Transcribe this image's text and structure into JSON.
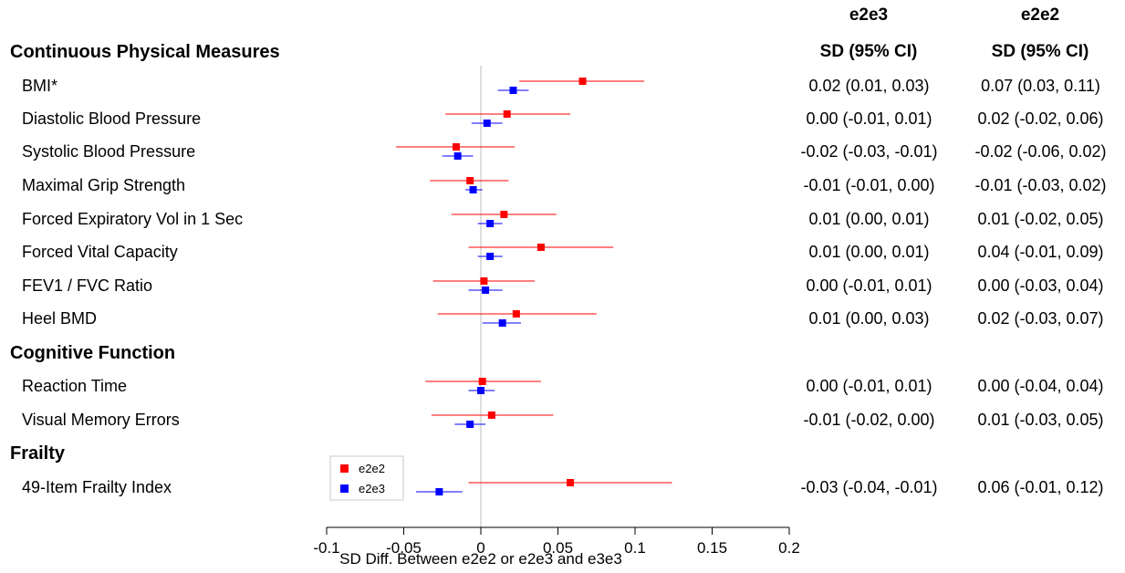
{
  "headers": {
    "e2e3": {
      "title": "e2e3",
      "sub": "SD (95% CI)"
    },
    "e2e2": {
      "title": "e2e2",
      "sub": "SD (95% CI)"
    }
  },
  "sections": [
    {
      "title": "Continuous Physical Measures"
    },
    {
      "title": "Cognitive Function"
    },
    {
      "title": "Frailty"
    }
  ],
  "rows": [
    {
      "label": "BMI*",
      "ci_e2e3": "0.02 (0.01, 0.03)",
      "ci_e2e2": "0.07 (0.03, 0.11)"
    },
    {
      "label": "Diastolic Blood Pressure",
      "ci_e2e3": "0.00 (-0.01, 0.01)",
      "ci_e2e2": "0.02 (-0.02, 0.06)"
    },
    {
      "label": "Systolic Blood Pressure",
      "ci_e2e3": "-0.02 (-0.03, -0.01)",
      "ci_e2e2": "-0.02 (-0.06, 0.02)"
    },
    {
      "label": "Maximal Grip Strength",
      "ci_e2e3": "-0.01 (-0.01, 0.00)",
      "ci_e2e2": "-0.01 (-0.03, 0.02)"
    },
    {
      "label": "Forced Expiratory Vol in 1 Sec",
      "ci_e2e3": "0.01 (0.00, 0.01)",
      "ci_e2e2": "0.01 (-0.02, 0.05)"
    },
    {
      "label": "Forced Vital Capacity",
      "ci_e2e3": "0.01 (0.00, 0.01)",
      "ci_e2e2": "0.04 (-0.01, 0.09)"
    },
    {
      "label": "FEV1 / FVC Ratio",
      "ci_e2e3": "0.00 (-0.01, 0.01)",
      "ci_e2e2": "0.00 (-0.03, 0.04)"
    },
    {
      "label": "Heel BMD",
      "ci_e2e3": "0.01 (0.00, 0.03)",
      "ci_e2e2": "0.02 (-0.03, 0.07)"
    },
    {
      "label": "Reaction Time",
      "ci_e2e3": "0.00 (-0.01, 0.01)",
      "ci_e2e2": "0.00 (-0.04, 0.04)"
    },
    {
      "label": "Visual Memory Errors",
      "ci_e2e3": "-0.01 (-0.02, 0.00)",
      "ci_e2e2": "0.01 (-0.03, 0.05)"
    },
    {
      "label": "49-Item Frailty Index",
      "ci_e2e3": "-0.03 (-0.04, -0.01)",
      "ci_e2e2": "0.06 (-0.01, 0.12)"
    }
  ],
  "chart_data": {
    "type": "scatter",
    "xlabel": "SD Diff. Between e2e2 or e2e3 and e3e3",
    "xlim": [
      -0.1,
      0.2
    ],
    "ticks": [
      "-0.1",
      "-0.05",
      "0",
      "0.05",
      "0.1",
      "0.15",
      "0.2"
    ],
    "tick_values": [
      -0.1,
      -0.05,
      0,
      0.05,
      0.1,
      0.15,
      0.2
    ],
    "reference_line": 0,
    "legend_position": "bottom-left",
    "categories": [
      "BMI*",
      "Diastolic Blood Pressure",
      "Systolic Blood Pressure",
      "Maximal Grip Strength",
      "Forced Expiratory Vol in 1 Sec",
      "Forced Vital Capacity",
      "FEV1 / FVC Ratio",
      "Heel BMD",
      "Reaction Time",
      "Visual Memory Errors",
      "49-Item Frailty Index"
    ],
    "series": [
      {
        "name": "e2e2",
        "color": "#ff0000",
        "values": [
          0.066,
          0.017,
          -0.016,
          -0.007,
          0.015,
          0.039,
          0.002,
          0.023,
          0.001,
          0.007,
          0.058
        ],
        "lower": [
          0.025,
          -0.023,
          -0.055,
          -0.033,
          -0.019,
          -0.008,
          -0.031,
          -0.028,
          -0.036,
          -0.032,
          -0.008
        ],
        "upper": [
          0.106,
          0.058,
          0.022,
          0.018,
          0.049,
          0.086,
          0.035,
          0.075,
          0.039,
          0.047,
          0.124
        ]
      },
      {
        "name": "e2e3",
        "color": "#0000ff",
        "values": [
          0.021,
          0.004,
          -0.015,
          -0.005,
          0.006,
          0.006,
          0.003,
          0.014,
          0.0,
          -0.007,
          -0.027
        ],
        "lower": [
          0.011,
          -0.006,
          -0.025,
          -0.01,
          -0.002,
          -0.002,
          -0.008,
          0.001,
          -0.008,
          -0.017,
          -0.042
        ],
        "upper": [
          0.031,
          0.014,
          -0.005,
          0.001,
          0.014,
          0.014,
          0.014,
          0.026,
          0.009,
          0.003,
          -0.012
        ]
      }
    ]
  }
}
